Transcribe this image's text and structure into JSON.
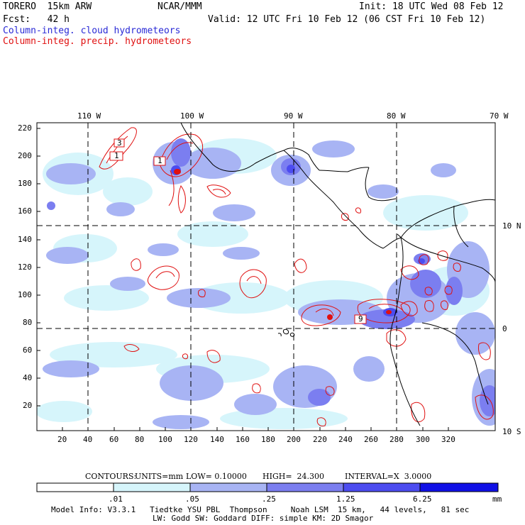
{
  "header": {
    "model": "TORERO  15km ARW",
    "org": "NCAR/MMM",
    "init": "Init: 18 UTC Wed 08 Feb 12",
    "fcst": "Fcst:   42 h",
    "valid": "Valid: 12 UTC Fri 10 Feb 12 (06 CST Fri 10 Feb 12)",
    "field_cloud": "Column-integ. cloud hydrometeors",
    "field_precip": "Column-integ. precip. hydrometeors"
  },
  "colors": {
    "cloud_text": "#2a2ad6",
    "precip": "#e01010",
    "shade1": "#d6f5fb",
    "shade2": "#a8b4f4",
    "shade3": "#7b7ef0",
    "shade4": "#4c4cf0",
    "shade5": "#1010e6"
  },
  "map": {
    "lon_labels": [
      "110 W",
      "100 W",
      "90 W",
      "80 W",
      "70 W"
    ],
    "lat_labels": [
      "10 N",
      "0",
      "10 S"
    ],
    "x_ticks": [
      "20",
      "40",
      "60",
      "80",
      "100",
      "120",
      "140",
      "160",
      "180",
      "200",
      "220",
      "240",
      "260",
      "280",
      "300",
      "320"
    ],
    "y_ticks": [
      "220",
      "200",
      "180",
      "160",
      "140",
      "120",
      "100",
      "80",
      "60",
      "40",
      "20"
    ],
    "box_labels": [
      "3",
      "1",
      "1",
      "9"
    ]
  },
  "contours": {
    "label": "CONTOURS:",
    "units": "UNITS=mm",
    "low": "LOW= 0.10000",
    "high": "HIGH=  24.300",
    "interval": "INTERVAL=X  3.0000"
  },
  "colorbar": {
    "ticks": [
      ".01",
      ".05",
      ".25",
      "1.25",
      "6.25"
    ],
    "units": "mm"
  },
  "footer": {
    "line1": "Model Info: V3.3.1   Tiedtke YSU PBL  Thompson     Noah LSM  15 km,   44 levels,   81 sec",
    "line2": "LW: Godd SW: Goddard DIFF: simple KM: 2D Smagor"
  }
}
